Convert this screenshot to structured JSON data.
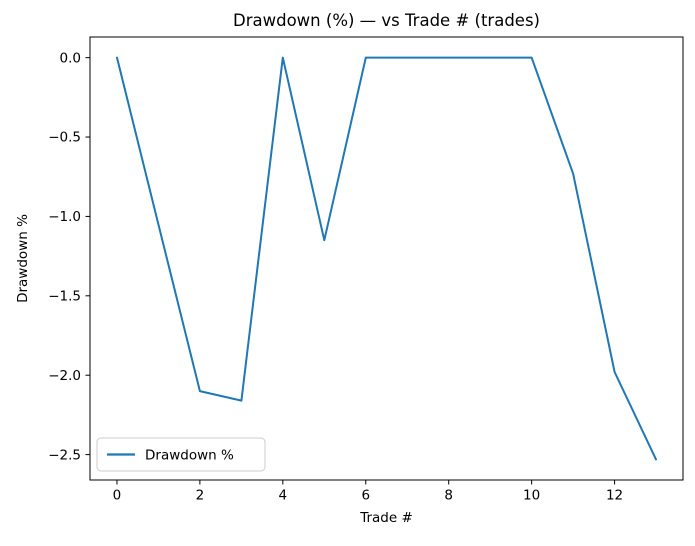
{
  "chart_data": {
    "type": "line",
    "title": "Drawdown (%) — vs Trade # (trades)",
    "xlabel": "Trade #",
    "ylabel": "Drawdown %",
    "x": [
      0,
      1,
      2,
      3,
      4,
      5,
      6,
      7,
      8,
      9,
      10,
      11,
      12,
      13
    ],
    "series": [
      {
        "name": "Drawdown %",
        "color": "#1f77b4",
        "values": [
          0,
          -1.05,
          -2.1,
          -2.16,
          0,
          -1.15,
          0,
          0,
          0,
          0,
          0,
          -0.73,
          -1.98,
          -2.53
        ]
      }
    ],
    "xlim": [
      -0.65,
      13.65
    ],
    "ylim": [
      -2.66,
      0.13
    ],
    "xticks": [
      0,
      2,
      4,
      6,
      8,
      10,
      12
    ],
    "xtick_labels": [
      "0",
      "2",
      "4",
      "6",
      "8",
      "10",
      "12"
    ],
    "yticks": [
      0,
      -0.5,
      -1,
      -1.5,
      -2,
      -2.5
    ],
    "ytick_labels": [
      "0.0",
      "−0.5",
      "−1.0",
      "−1.5",
      "−2.0",
      "−2.5"
    ],
    "grid": false,
    "legend": {
      "position": "lower left",
      "entries": [
        {
          "label": "Drawdown %",
          "color": "#1f77b4"
        }
      ]
    }
  },
  "colors": {
    "background": "#ffffff",
    "spine": "#000000",
    "text": "#000000",
    "legend_border": "#cccccc",
    "legend_bg": "#ffffff"
  }
}
